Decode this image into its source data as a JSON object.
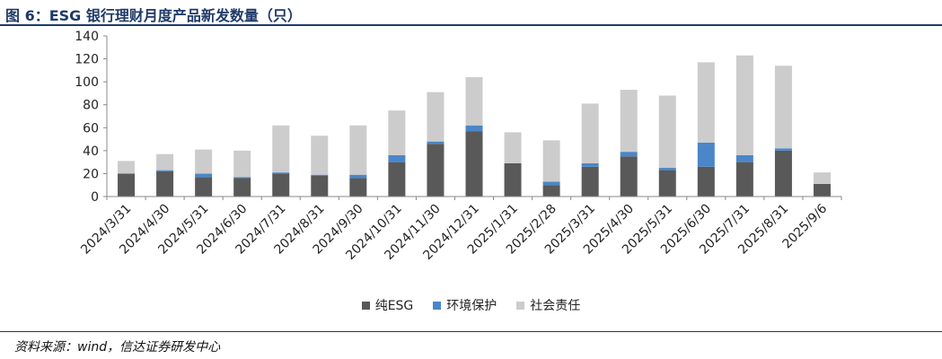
{
  "figure": {
    "title": "图 6：ESG 银行理财月度产品新发数量（只）",
    "source": "资料来源：wind，信达证券研发中心"
  },
  "chart_data": {
    "type": "bar",
    "stacked": true,
    "categories": [
      "2024/3/31",
      "2024/4/30",
      "2024/5/31",
      "2024/6/30",
      "2024/7/31",
      "2024/8/31",
      "2024/9/30",
      "2024/10/31",
      "2024/11/30",
      "2024/12/31",
      "2025/1/31",
      "2025/2/28",
      "2025/3/31",
      "2025/4/30",
      "2025/5/31",
      "2025/6/30",
      "2025/7/31",
      "2025/8/31",
      "2025/9/6"
    ],
    "series": [
      {
        "name": "纯ESG",
        "color": "#595959",
        "values": [
          20,
          22,
          17,
          16,
          20,
          18,
          16,
          30,
          46,
          57,
          29,
          10,
          26,
          35,
          23,
          26,
          30,
          40,
          11
        ]
      },
      {
        "name": "环境保护",
        "color": "#4a86c8",
        "values": [
          0,
          1,
          3,
          1,
          1,
          1,
          3,
          6,
          2,
          5,
          0,
          3,
          3,
          4,
          2,
          21,
          6,
          2,
          0
        ]
      },
      {
        "name": "社会责任",
        "color": "#cccccc",
        "values": [
          11,
          14,
          21,
          23,
          41,
          34,
          43,
          39,
          43,
          42,
          27,
          36,
          52,
          54,
          63,
          70,
          87,
          72,
          10
        ]
      }
    ],
    "ylim": [
      0,
      140
    ],
    "yticks": [
      0,
      20,
      40,
      60,
      80,
      100,
      120,
      140
    ],
    "grid": false,
    "legend_position": "bottom"
  }
}
